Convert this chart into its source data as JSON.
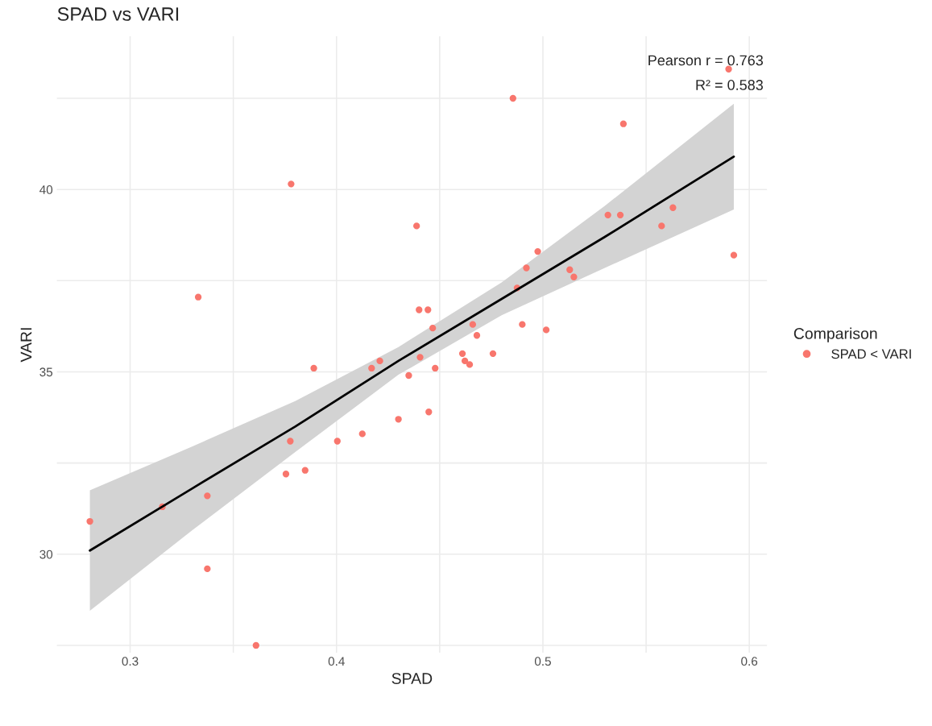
{
  "chart_data": {
    "type": "scatter",
    "title": "SPAD vs VARI",
    "xlabel": "SPAD",
    "ylabel": "VARI",
    "legend_title": "Comparison",
    "xlim": [
      0.2645,
      0.6086
    ],
    "ylim": [
      27.3,
      44.2
    ],
    "xticks": [
      0.3,
      {
        "value": 0.35,
        "label": null
      },
      0.4,
      {
        "value": 0.45,
        "label": null
      },
      0.5,
      {
        "value": 0.55,
        "label": null
      },
      0.6
    ],
    "yticks": [
      {
        "value": 27.5,
        "label": null
      },
      30,
      {
        "value": 32.5,
        "label": null
      },
      35,
      {
        "value": 37.5,
        "label": null
      },
      40,
      {
        "value": 42.5,
        "label": null
      }
    ],
    "grid": true,
    "legend": "right",
    "annotations": [
      "Pearson r = 0.763",
      "R² = 0.583"
    ],
    "series": [
      {
        "name": "SPAD < VARI",
        "marker": "circle",
        "color": "#f8766d",
        "x": [
          0.2805,
          0.3156,
          0.333,
          0.3374,
          0.3374,
          0.361,
          0.3755,
          0.3776,
          0.378,
          0.3848,
          0.389,
          0.4004,
          0.4125,
          0.417,
          0.421,
          0.43,
          0.435,
          0.4388,
          0.44,
          0.4405,
          0.4443,
          0.4447,
          0.4466,
          0.4478,
          0.461,
          0.4622,
          0.4645,
          0.466,
          0.468,
          0.4758,
          0.4855,
          0.4875,
          0.49,
          0.492,
          0.4975,
          0.5016,
          0.513,
          0.515,
          0.5315,
          0.5375,
          0.539,
          0.5575,
          0.563,
          0.59,
          0.5925
        ],
        "values": [
          30.9,
          31.3,
          37.05,
          31.6,
          29.6,
          27.5,
          32.2,
          33.1,
          40.15,
          32.3,
          35.1,
          33.1,
          33.3,
          35.1,
          35.3,
          33.7,
          34.9,
          39.0,
          36.7,
          35.4,
          36.7,
          33.9,
          36.2,
          35.1,
          35.5,
          35.3,
          35.2,
          36.3,
          36.0,
          35.5,
          42.5,
          37.3,
          36.3,
          37.85,
          38.3,
          36.15,
          37.8,
          37.6,
          39.3,
          39.3,
          41.8,
          39.0,
          39.5,
          43.3,
          38.2
        ]
      },
      {
        "type": "line",
        "marker": "none",
        "color": "#000000",
        "x": [
          0.2805,
          0.33,
          0.38,
          0.43,
          0.48,
          0.53,
          0.5925
        ],
        "values": [
          30.1,
          31.8,
          33.5,
          35.3,
          37.0,
          38.7,
          40.9
        ],
        "lower": [
          28.45,
          30.65,
          32.8,
          34.92,
          36.55,
          37.85,
          39.45
        ],
        "upper": [
          31.75,
          32.95,
          34.2,
          35.68,
          37.45,
          39.55,
          42.35
        ]
      }
    ]
  }
}
